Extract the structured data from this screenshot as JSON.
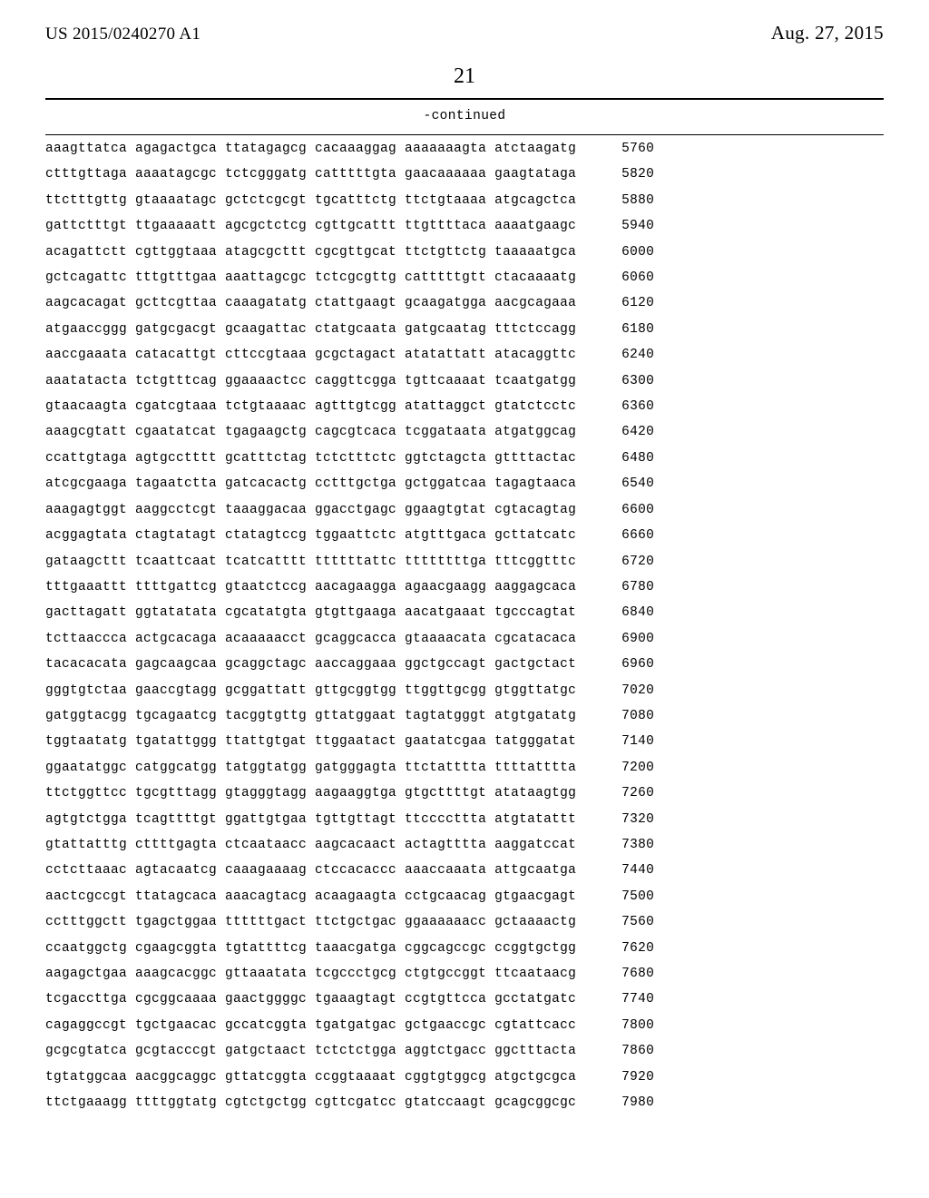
{
  "header": {
    "publication_number": "US 2015/0240270 A1",
    "publication_date": "Aug. 27, 2015",
    "page_number": "21",
    "continued_label": "-continued"
  },
  "sequence": {
    "font_family": "Courier New",
    "font_size_pt": 11,
    "group_gap_spaces": 1,
    "rows": [
      {
        "groups": [
          "aaagttatca",
          "agagactgca",
          "ttatagagcg",
          "cacaaaggag",
          "aaaaaaagta",
          "atctaagatg"
        ],
        "pos": 5760
      },
      {
        "groups": [
          "ctttgttaga",
          "aaaatagcgc",
          "tctcgggatg",
          "catttttgta",
          "gaacaaaaaa",
          "gaagtataga"
        ],
        "pos": 5820
      },
      {
        "groups": [
          "ttctttgttg",
          "gtaaaatagc",
          "gctctcgcgt",
          "tgcatttctg",
          "ttctgtaaaa",
          "atgcagctca"
        ],
        "pos": 5880
      },
      {
        "groups": [
          "gattctttgt",
          "ttgaaaaatt",
          "agcgctctcg",
          "cgttgcattt",
          "ttgttttaca",
          "aaaatgaagc"
        ],
        "pos": 5940
      },
      {
        "groups": [
          "acagattctt",
          "cgttggtaaa",
          "atagcgcttt",
          "cgcgttgcat",
          "ttctgttctg",
          "taaaaatgca"
        ],
        "pos": 6000
      },
      {
        "groups": [
          "gctcagattc",
          "tttgtttgaa",
          "aaattagcgc",
          "tctcgcgttg",
          "catttttgtt",
          "ctacaaaatg"
        ],
        "pos": 6060
      },
      {
        "groups": [
          "aagcacagat",
          "gcttcgttaa",
          "caaagatatg",
          "ctattgaagt",
          "gcaagatgga",
          "aacgcagaaa"
        ],
        "pos": 6120
      },
      {
        "groups": [
          "atgaaccggg",
          "gatgcgacgt",
          "gcaagattac",
          "ctatgcaata",
          "gatgcaatag",
          "tttctccagg"
        ],
        "pos": 6180
      },
      {
        "groups": [
          "aaccgaaata",
          "catacattgt",
          "cttccgtaaa",
          "gcgctagact",
          "atatattatt",
          "atacaggttc"
        ],
        "pos": 6240
      },
      {
        "groups": [
          "aaatatacta",
          "tctgtttcag",
          "ggaaaactcc",
          "caggttcgga",
          "tgttcaaaat",
          "tcaatgatgg"
        ],
        "pos": 6300
      },
      {
        "groups": [
          "gtaacaagta",
          "cgatcgtaaa",
          "tctgtaaaac",
          "agtttgtcgg",
          "atattaggct",
          "gtatctcctc"
        ],
        "pos": 6360
      },
      {
        "groups": [
          "aaagcgtatt",
          "cgaatatcat",
          "tgagaagctg",
          "cagcgtcaca",
          "tcggataata",
          "atgatggcag"
        ],
        "pos": 6420
      },
      {
        "groups": [
          "ccattgtaga",
          "agtgcctttt",
          "gcatttctag",
          "tctctttctc",
          "ggtctagcta",
          "gttttactac"
        ],
        "pos": 6480
      },
      {
        "groups": [
          "atcgcgaaga",
          "tagaatctta",
          "gatcacactg",
          "cctttgctga",
          "gctggatcaa",
          "tagagtaaca"
        ],
        "pos": 6540
      },
      {
        "groups": [
          "aaagagtggt",
          "aaggcctcgt",
          "taaaggacaa",
          "ggacctgagc",
          "ggaagtgtat",
          "cgtacagtag"
        ],
        "pos": 6600
      },
      {
        "groups": [
          "acggagtata",
          "ctagtatagt",
          "ctatagtccg",
          "tggaattctc",
          "atgtttgaca",
          "gcttatcatc"
        ],
        "pos": 6660
      },
      {
        "groups": [
          "gataagcttt",
          "tcaattcaat",
          "tcatcatttt",
          "ttttttattc",
          "ttttttttga",
          "tttcggtttc"
        ],
        "pos": 6720
      },
      {
        "groups": [
          "tttgaaattt",
          "ttttgattcg",
          "gtaatctccg",
          "aacagaagga",
          "agaacgaagg",
          "aaggagcaca"
        ],
        "pos": 6780
      },
      {
        "groups": [
          "gacttagatt",
          "ggtatatata",
          "cgcatatgta",
          "gtgttgaaga",
          "aacatgaaat",
          "tgcccagtat"
        ],
        "pos": 6840
      },
      {
        "groups": [
          "tcttaaccca",
          "actgcacaga",
          "acaaaaacct",
          "gcaggcacca",
          "gtaaaacata",
          "cgcatacaca"
        ],
        "pos": 6900
      },
      {
        "groups": [
          "tacacacata",
          "gagcaagcaa",
          "gcaggctagc",
          "aaccaggaaa",
          "ggctgccagt",
          "gactgctact"
        ],
        "pos": 6960
      },
      {
        "groups": [
          "gggtgtctaa",
          "gaaccgtagg",
          "gcggattatt",
          "gttgcggtgg",
          "ttggttgcgg",
          "gtggttatgc"
        ],
        "pos": 7020
      },
      {
        "groups": [
          "gatggtacgg",
          "tgcagaatcg",
          "tacggtgttg",
          "gttatggaat",
          "tagtatgggt",
          "atgtgatatg"
        ],
        "pos": 7080
      },
      {
        "groups": [
          "tggtaatatg",
          "tgatattggg",
          "ttattgtgat",
          "ttggaatact",
          "gaatatcgaa",
          "tatgggatat"
        ],
        "pos": 7140
      },
      {
        "groups": [
          "ggaatatggc",
          "catggcatgg",
          "tatggtatgg",
          "gatgggagta",
          "ttctatttta",
          "ttttatttta"
        ],
        "pos": 7200
      },
      {
        "groups": [
          "ttctggttcc",
          "tgcgtttagg",
          "gtagggtagg",
          "aagaaggtga",
          "gtgcttttgt",
          "atataagtgg"
        ],
        "pos": 7260
      },
      {
        "groups": [
          "agtgtctgga",
          "tcagttttgt",
          "ggattgtgaa",
          "tgttgttagt",
          "ttccccttta",
          "atgtatattt"
        ],
        "pos": 7320
      },
      {
        "groups": [
          "gtattatttg",
          "cttttgagta",
          "ctcaataacc",
          "aagcacaact",
          "actagtttta",
          "aaggatccat"
        ],
        "pos": 7380
      },
      {
        "groups": [
          "cctcttaaac",
          "agtacaatcg",
          "caaagaaaag",
          "ctccacaccc",
          "aaaccaaata",
          "attgcaatga"
        ],
        "pos": 7440
      },
      {
        "groups": [
          "aactcgccgt",
          "ttatagcaca",
          "aaacagtacg",
          "acaagaagta",
          "cctgcaacag",
          "gtgaacgagt"
        ],
        "pos": 7500
      },
      {
        "groups": [
          "cctttggctt",
          "tgagctggaa",
          "ttttttgact",
          "ttctgctgac",
          "ggaaaaaacc",
          "gctaaaactg"
        ],
        "pos": 7560
      },
      {
        "groups": [
          "ccaatggctg",
          "cgaagcggta",
          "tgtattttcg",
          "taaacgatga",
          "cggcagccgc",
          "ccggtgctgg"
        ],
        "pos": 7620
      },
      {
        "groups": [
          "aagagctgaa",
          "aaagcacggc",
          "gttaaatata",
          "tcgccctgcg",
          "ctgtgccggt",
          "ttcaataacg"
        ],
        "pos": 7680
      },
      {
        "groups": [
          "tcgaccttga",
          "cgcggcaaaa",
          "gaactggggc",
          "tgaaagtagt",
          "ccgtgttcca",
          "gcctatgatc"
        ],
        "pos": 7740
      },
      {
        "groups": [
          "cagaggccgt",
          "tgctgaacac",
          "gccatcggta",
          "tgatgatgac",
          "gctgaaccgc",
          "cgtattcacc"
        ],
        "pos": 7800
      },
      {
        "groups": [
          "gcgcgtatca",
          "gcgtacccgt",
          "gatgctaact",
          "tctctctgga",
          "aggtctgacc",
          "ggctttacta"
        ],
        "pos": 7860
      },
      {
        "groups": [
          "tgtatggcaa",
          "aacggcaggc",
          "gttatcggta",
          "ccggtaaaat",
          "cggtgtggcg",
          "atgctgcgca"
        ],
        "pos": 7920
      },
      {
        "groups": [
          "ttctgaaagg",
          "ttttggtatg",
          "cgtctgctgg",
          "cgttcgatcc",
          "gtatccaagt",
          "gcagcggcgc"
        ],
        "pos": 7980
      }
    ]
  },
  "colors": {
    "text": "#000000",
    "background": "#ffffff",
    "rule": "#000000"
  }
}
